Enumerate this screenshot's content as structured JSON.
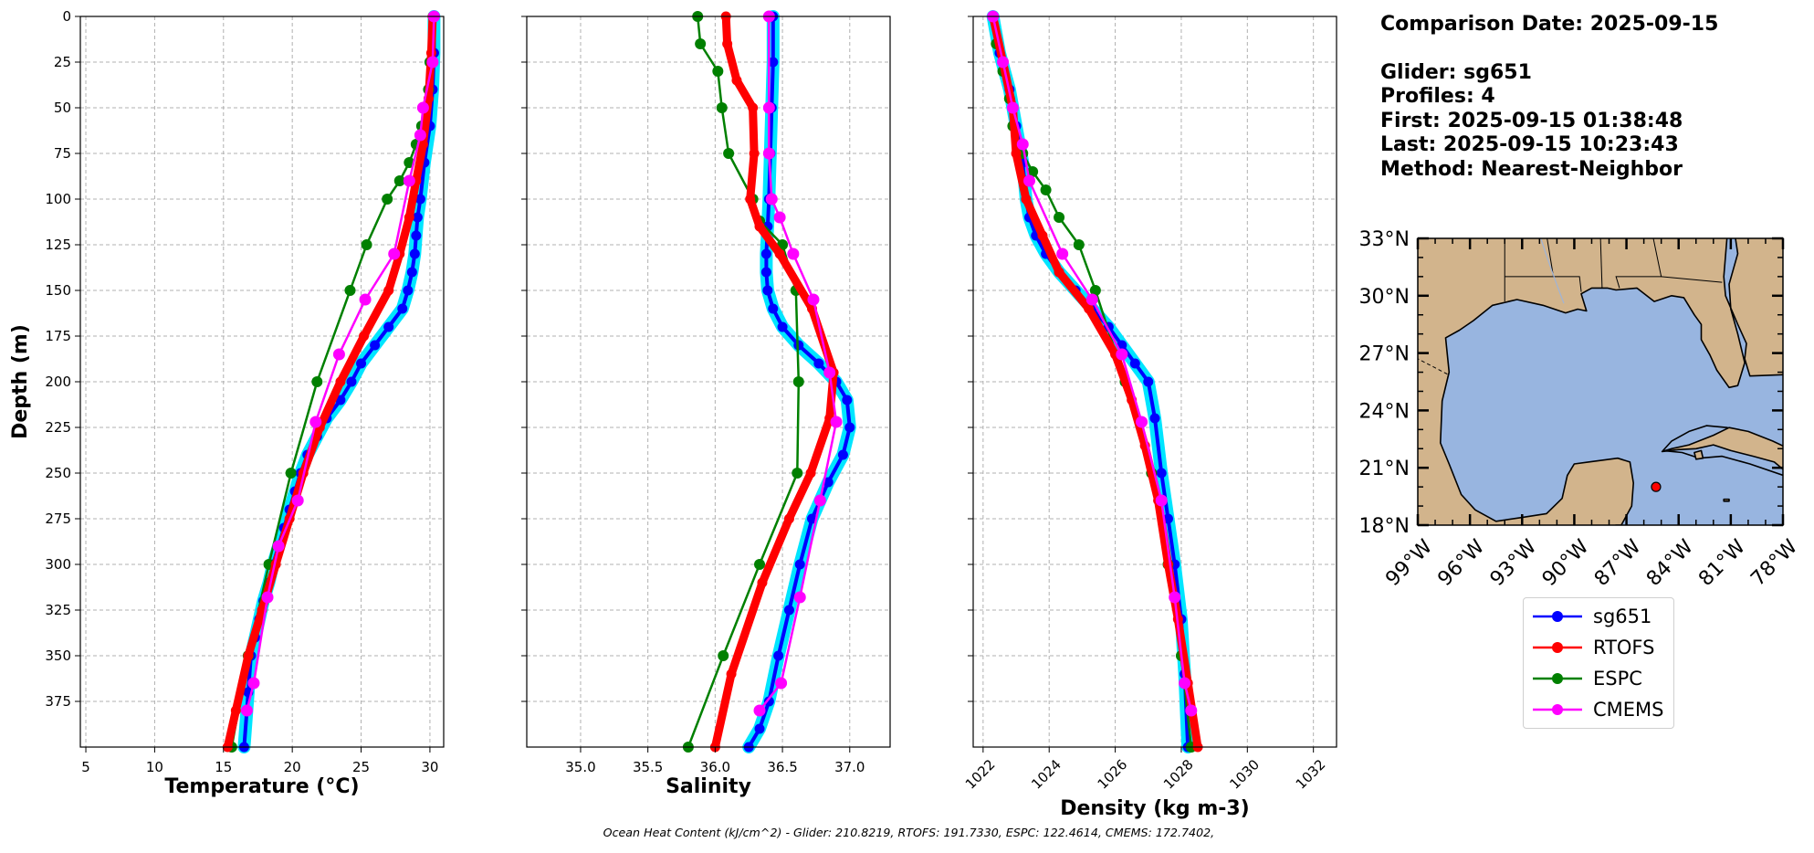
{
  "info": {
    "comparison_date": "Comparison Date: 2025-09-15",
    "glider": "Glider: sg651",
    "profiles": "Profiles: 4",
    "first": "First: 2025-09-15 01:38:48",
    "last": "Last: 2025-09-15 10:23:43",
    "method": "Method: Nearest-Neighbor"
  },
  "ohc_text": "Ocean Heat Content (kJ/cm^2) - Glider: 210.8219,  RTOFS: 191.7330,  ESPC: 122.4614,  CMEMS: 172.7402,",
  "colors": {
    "sg651": "#0000ff",
    "sg651_halo": "#00e5ff",
    "RTOFS": "#ff0000",
    "ESPC": "#008000",
    "CMEMS": "#ff00ff",
    "land": "#d2b48c",
    "water": "#98b5e0"
  },
  "legend": [
    {
      "name": "sg651",
      "color": "#0000ff"
    },
    {
      "name": "RTOFS",
      "color": "#ff0000"
    },
    {
      "name": "ESPC",
      "color": "#008000"
    },
    {
      "name": "CMEMS",
      "color": "#ff00ff"
    }
  ],
  "map": {
    "lat_labels": [
      "33°N",
      "30°N",
      "27°N",
      "24°N",
      "21°N",
      "18°N"
    ],
    "lat_values": [
      33,
      30,
      27,
      24,
      21,
      18
    ],
    "lon_labels": [
      "99°W",
      "96°W",
      "93°W",
      "90°W",
      "87°W",
      "84°W",
      "81°W",
      "78°W"
    ],
    "lon_values": [
      -99,
      -96,
      -93,
      -90,
      -87,
      -84,
      -81,
      -78
    ],
    "extent": {
      "lon": [
        -99,
        -78
      ],
      "lat": [
        18,
        33
      ]
    },
    "glider_position": {
      "lon": -85.3,
      "lat": 20.0
    }
  },
  "chart_data": [
    {
      "type": "line",
      "xlabel": "Temperature (°C)",
      "ylabel": "Depth (m)",
      "xlim": [
        4.6,
        31.0
      ],
      "ylim": [
        400,
        0
      ],
      "xticks": [
        5,
        10,
        15,
        20,
        25,
        30
      ],
      "yticks": [
        0,
        25,
        50,
        75,
        100,
        125,
        150,
        175,
        200,
        225,
        250,
        275,
        300,
        325,
        350,
        375
      ],
      "grid": true,
      "series": [
        {
          "name": "sg651",
          "x": [
            30.3,
            30.3,
            30.2,
            30.0,
            29.6,
            29.3,
            29.1,
            29.0,
            28.9,
            28.7,
            28.4,
            28.0,
            27.0,
            26.0,
            25.0,
            24.3,
            23.5,
            22.5,
            21.8,
            21.1,
            20.6,
            20.2,
            19.8,
            19.4,
            19.0,
            18.6,
            18.3,
            17.9,
            17.6,
            17.3,
            17.0,
            16.8,
            16.5
          ],
          "y": [
            0,
            20,
            40,
            60,
            80,
            100,
            110,
            120,
            130,
            140,
            150,
            160,
            170,
            180,
            190,
            200,
            210,
            220,
            230,
            240,
            250,
            260,
            270,
            280,
            290,
            300,
            310,
            320,
            330,
            340,
            350,
            370,
            400
          ]
        },
        {
          "name": "RTOFS",
          "x": [
            30.2,
            30.1,
            29.9,
            29.5,
            29.0,
            28.5,
            27.8,
            27.0,
            25.2,
            23.5,
            22.0,
            20.8,
            19.8,
            18.8,
            17.8,
            16.8,
            15.9,
            15.3
          ],
          "y": [
            0,
            20,
            45,
            70,
            90,
            110,
            130,
            150,
            175,
            200,
            225,
            250,
            275,
            300,
            325,
            350,
            380,
            400
          ]
        },
        {
          "name": "ESPC",
          "x": [
            30.0,
            29.9,
            29.7,
            29.4,
            29.0,
            28.5,
            27.8,
            26.9,
            25.4,
            24.2,
            21.8,
            19.9,
            18.3,
            16.8,
            15.6
          ],
          "y": [
            25,
            40,
            50,
            60,
            70,
            80,
            90,
            100,
            125,
            150,
            200,
            250,
            300,
            350,
            400
          ]
        },
        {
          "name": "CMEMS",
          "x": [
            30.3,
            30.2,
            29.5,
            29.3,
            28.5,
            27.4,
            25.3,
            23.4,
            21.7,
            20.4,
            19.0,
            18.2,
            17.2,
            16.7
          ],
          "y": [
            0,
            25,
            50,
            65,
            90,
            130,
            155,
            185,
            222,
            265,
            290,
            318,
            365,
            380
          ]
        }
      ]
    },
    {
      "type": "line",
      "xlabel": "Salinity",
      "ylabel": "",
      "xlim": [
        34.6,
        37.3
      ],
      "ylim": [
        400,
        0
      ],
      "xticks": [
        35.0,
        35.5,
        36.0,
        36.5,
        37.0
      ],
      "grid": true,
      "series": [
        {
          "name": "sg651",
          "x": [
            36.43,
            36.43,
            36.42,
            36.41,
            36.4,
            36.39,
            36.38,
            36.38,
            36.39,
            36.43,
            36.5,
            36.62,
            36.77,
            36.9,
            36.98,
            37.0,
            36.95,
            36.84,
            36.72,
            36.63,
            36.55,
            36.47,
            36.4,
            36.33,
            36.25
          ],
          "y": [
            0,
            25,
            50,
            75,
            100,
            115,
            130,
            140,
            150,
            160,
            170,
            180,
            190,
            200,
            210,
            225,
            240,
            255,
            275,
            300,
            325,
            350,
            375,
            390,
            400
          ]
        },
        {
          "name": "RTOFS",
          "x": [
            36.08,
            36.09,
            36.16,
            36.28,
            36.29,
            36.26,
            36.33,
            36.48,
            36.72,
            36.88,
            36.85,
            36.71,
            36.55,
            36.35,
            36.12,
            36.0
          ],
          "y": [
            0,
            15,
            35,
            50,
            75,
            100,
            115,
            130,
            160,
            195,
            220,
            250,
            275,
            310,
            360,
            400
          ]
        },
        {
          "name": "ESPC",
          "x": [
            35.87,
            35.89,
            36.02,
            36.05,
            36.1,
            36.28,
            36.33,
            36.5,
            36.6,
            36.62,
            36.61,
            36.33,
            36.06,
            35.8
          ],
          "y": [
            0,
            15,
            30,
            50,
            75,
            100,
            112,
            125,
            150,
            200,
            250,
            300,
            350,
            400
          ]
        },
        {
          "name": "CMEMS",
          "x": [
            36.4,
            36.4,
            36.4,
            36.42,
            36.48,
            36.58,
            36.73,
            36.85,
            36.9,
            36.78,
            36.63,
            36.49,
            36.33
          ],
          "y": [
            0,
            50,
            75,
            100,
            110,
            130,
            155,
            195,
            222,
            265,
            318,
            365,
            380
          ]
        }
      ]
    },
    {
      "type": "line",
      "xlabel": "Density (kg m-3)",
      "ylabel": "",
      "xlim": [
        1021.7,
        1032.7
      ],
      "ylim": [
        400,
        0
      ],
      "xticks": [
        1022,
        1024,
        1026,
        1028,
        1030,
        1032
      ],
      "grid": true,
      "series": [
        {
          "name": "sg651",
          "x": [
            1022.3,
            1022.5,
            1022.8,
            1023.0,
            1023.2,
            1023.3,
            1023.4,
            1023.6,
            1023.9,
            1024.3,
            1024.8,
            1025.3,
            1025.8,
            1026.2,
            1026.6,
            1027.0,
            1027.2,
            1027.4,
            1027.6,
            1027.8,
            1028.0,
            1028.1,
            1028.2
          ],
          "y": [
            0,
            20,
            40,
            60,
            80,
            100,
            110,
            120,
            130,
            140,
            150,
            160,
            170,
            180,
            190,
            200,
            220,
            250,
            275,
            300,
            330,
            360,
            400
          ]
        },
        {
          "name": "RTOFS",
          "x": [
            1022.3,
            1022.6,
            1022.9,
            1023.0,
            1023.3,
            1023.8,
            1024.3,
            1025.2,
            1026.0,
            1026.5,
            1026.9,
            1027.3,
            1027.6,
            1027.9,
            1028.2,
            1028.5
          ],
          "y": [
            0,
            25,
            50,
            75,
            100,
            120,
            140,
            160,
            185,
            210,
            235,
            265,
            300,
            330,
            365,
            400
          ]
        },
        {
          "name": "ESPC",
          "x": [
            1022.3,
            1022.4,
            1022.6,
            1022.8,
            1022.9,
            1023.2,
            1023.5,
            1023.9,
            1024.3,
            1024.9,
            1025.4,
            1026.3,
            1027.1,
            1027.6,
            1028.0,
            1028.3
          ],
          "y": [
            0,
            15,
            30,
            45,
            60,
            75,
            85,
            95,
            110,
            125,
            150,
            200,
            250,
            300,
            350,
            400
          ]
        },
        {
          "name": "CMEMS",
          "x": [
            1022.3,
            1022.6,
            1022.9,
            1023.2,
            1023.4,
            1024.4,
            1025.3,
            1026.2,
            1026.8,
            1027.4,
            1027.8,
            1028.1,
            1028.3
          ],
          "y": [
            0,
            25,
            50,
            70,
            90,
            130,
            155,
            185,
            222,
            265,
            318,
            365,
            380
          ]
        }
      ]
    }
  ]
}
